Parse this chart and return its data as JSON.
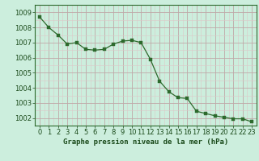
{
  "x": [
    0,
    1,
    2,
    3,
    4,
    5,
    6,
    7,
    8,
    9,
    10,
    11,
    12,
    13,
    14,
    15,
    16,
    17,
    18,
    19,
    20,
    21,
    22,
    23
  ],
  "y": [
    1008.7,
    1008.0,
    1007.5,
    1006.9,
    1007.0,
    1006.55,
    1006.5,
    1006.55,
    1006.9,
    1007.1,
    1007.15,
    1007.0,
    1005.9,
    1004.45,
    1003.75,
    1003.35,
    1003.3,
    1002.45,
    1002.3,
    1002.15,
    1002.05,
    1001.95,
    1001.95,
    1001.75
  ],
  "line_color": "#2d6a2d",
  "marker_color": "#2d6a2d",
  "bg_color": "#cceedd",
  "grid_major_color": "#c0a8a8",
  "grid_minor_color": "#ddc8c8",
  "ylabel_ticks": [
    1002,
    1003,
    1004,
    1005,
    1006,
    1007,
    1008,
    1009
  ],
  "xlabel": "Graphe pression niveau de la mer (hPa)",
  "xlim": [
    -0.5,
    23.5
  ],
  "ylim": [
    1001.5,
    1009.5
  ],
  "xlabel_fontsize": 6.5,
  "tick_fontsize": 6.0,
  "label_color": "#1a4a1a"
}
